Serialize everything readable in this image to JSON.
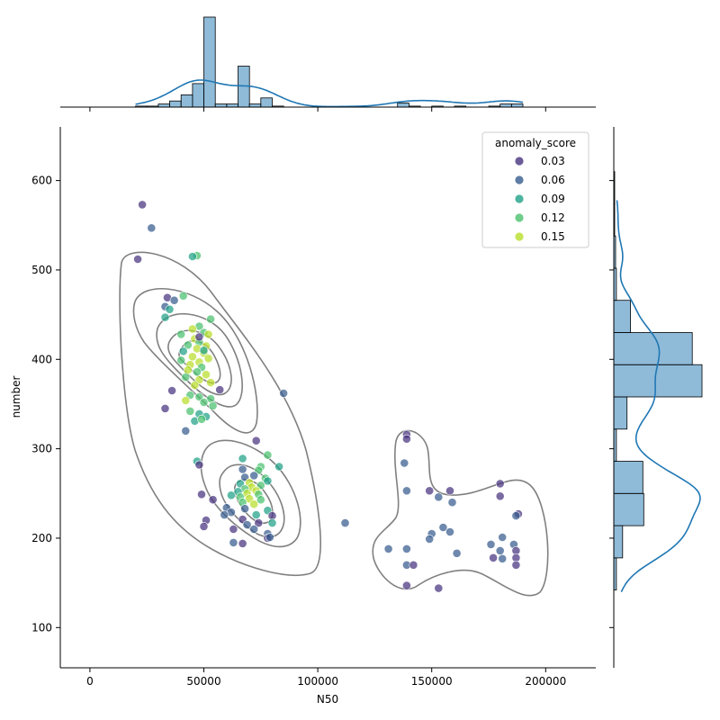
{
  "chart_data": {
    "type": "scatter",
    "subtype": "jointplot",
    "xlabel": "N50",
    "ylabel": "number",
    "xlim": [
      -13000,
      222000
    ],
    "ylim": [
      55,
      660
    ],
    "x_ticks": [
      0,
      50000,
      100000,
      150000,
      200000
    ],
    "y_ticks": [
      100,
      200,
      300,
      400,
      500,
      600
    ],
    "grid": false,
    "legend": {
      "title": "anomaly_score",
      "placement": "top-right",
      "entries": [
        {
          "label": "0.03",
          "color": "#46337e"
        },
        {
          "label": "0.06",
          "color": "#365c8d"
        },
        {
          "label": "0.09",
          "color": "#1fa187"
        },
        {
          "label": "0.12",
          "color": "#4ac16d"
        },
        {
          "label": "0.15",
          "color": "#b8de29"
        }
      ]
    },
    "points": [
      [
        23000,
        573,
        0.03
      ],
      [
        27000,
        547,
        0.06
      ],
      [
        21000,
        512,
        0.03
      ],
      [
        47000,
        516,
        0.12
      ],
      [
        45000,
        515,
        0.09
      ],
      [
        34000,
        469,
        0.03
      ],
      [
        37000,
        466,
        0.06
      ],
      [
        41000,
        471,
        0.12
      ],
      [
        33000,
        459,
        0.06
      ],
      [
        35000,
        456,
        0.09
      ],
      [
        33000,
        447,
        0.09
      ],
      [
        53000,
        445,
        0.12
      ],
      [
        48000,
        437,
        0.12
      ],
      [
        45000,
        434,
        0.15
      ],
      [
        50000,
        430,
        0.12
      ],
      [
        40000,
        428,
        0.12
      ],
      [
        52000,
        428,
        0.15
      ],
      [
        46000,
        423,
        0.15
      ],
      [
        48000,
        419,
        0.12
      ],
      [
        43000,
        416,
        0.12
      ],
      [
        51000,
        415,
        0.15
      ],
      [
        47000,
        412,
        0.15
      ],
      [
        41000,
        409,
        0.09
      ],
      [
        50000,
        407,
        0.15
      ],
      [
        45000,
        403,
        0.15
      ],
      [
        52000,
        401,
        0.15
      ],
      [
        40000,
        399,
        0.12
      ],
      [
        48000,
        397,
        0.15
      ],
      [
        44000,
        394,
        0.15
      ],
      [
        49000,
        391,
        0.12
      ],
      [
        43000,
        388,
        0.15
      ],
      [
        47000,
        386,
        0.12
      ],
      [
        51000,
        383,
        0.15
      ],
      [
        42000,
        380,
        0.12
      ],
      [
        48000,
        377,
        0.15
      ],
      [
        53000,
        374,
        0.15
      ],
      [
        46000,
        371,
        0.15
      ],
      [
        57000,
        366,
        0.03
      ],
      [
        36000,
        365,
        0.03
      ],
      [
        44000,
        360,
        0.12
      ],
      [
        48000,
        358,
        0.12
      ],
      [
        53000,
        356,
        0.12
      ],
      [
        42000,
        354,
        0.15
      ],
      [
        50000,
        352,
        0.12
      ],
      [
        54000,
        348,
        0.12
      ],
      [
        33000,
        345,
        0.03
      ],
      [
        44000,
        342,
        0.12
      ],
      [
        48000,
        339,
        0.09
      ],
      [
        51000,
        336,
        0.09
      ],
      [
        46000,
        331,
        0.09
      ],
      [
        49000,
        333,
        0.12
      ],
      [
        42000,
        320,
        0.06
      ],
      [
        85000,
        362,
        0.06
      ],
      [
        48000,
        425,
        0.03
      ],
      [
        50000,
        410,
        0.09
      ],
      [
        73000,
        309,
        0.03
      ],
      [
        78000,
        293,
        0.12
      ],
      [
        75000,
        280,
        0.12
      ],
      [
        83000,
        280,
        0.09
      ],
      [
        67000,
        289,
        0.09
      ],
      [
        47000,
        286,
        0.09
      ],
      [
        48000,
        282,
        0.03
      ],
      [
        67000,
        277,
        0.06
      ],
      [
        74000,
        276,
        0.12
      ],
      [
        72000,
        270,
        0.06
      ],
      [
        68000,
        268,
        0.06
      ],
      [
        77000,
        267,
        0.12
      ],
      [
        78000,
        264,
        0.09
      ],
      [
        70000,
        262,
        0.15
      ],
      [
        66000,
        261,
        0.09
      ],
      [
        75000,
        259,
        0.12
      ],
      [
        71000,
        257,
        0.15
      ],
      [
        68000,
        255,
        0.12
      ],
      [
        73000,
        253,
        0.15
      ],
      [
        65000,
        252,
        0.09
      ],
      [
        69000,
        250,
        0.15
      ],
      [
        74000,
        249,
        0.12
      ],
      [
        62000,
        248,
        0.09
      ],
      [
        66000,
        246,
        0.12
      ],
      [
        70000,
        244,
        0.15
      ],
      [
        75000,
        243,
        0.12
      ],
      [
        54000,
        243,
        0.03
      ],
      [
        67000,
        240,
        0.12
      ],
      [
        72000,
        238,
        0.15
      ],
      [
        78000,
        231,
        0.09
      ],
      [
        60000,
        234,
        0.06
      ],
      [
        62000,
        229,
        0.06
      ],
      [
        59000,
        226,
        0.06
      ],
      [
        68000,
        233,
        0.06
      ],
      [
        73000,
        226,
        0.09
      ],
      [
        80000,
        225,
        0.03
      ],
      [
        51000,
        220,
        0.03
      ],
      [
        50000,
        213,
        0.03
      ],
      [
        67000,
        221,
        0.03
      ],
      [
        69000,
        215,
        0.06
      ],
      [
        74000,
        217,
        0.03
      ],
      [
        80000,
        217,
        0.09
      ],
      [
        63000,
        210,
        0.03
      ],
      [
        72000,
        210,
        0.06
      ],
      [
        78000,
        205,
        0.06
      ],
      [
        78000,
        200,
        0.03
      ],
      [
        63000,
        195,
        0.06
      ],
      [
        67000,
        194,
        0.03
      ],
      [
        49000,
        249,
        0.03
      ],
      [
        79000,
        201,
        0.06
      ],
      [
        112000,
        217,
        0.06
      ],
      [
        139000,
        316,
        0.03
      ],
      [
        139000,
        311,
        0.03
      ],
      [
        138000,
        284,
        0.06
      ],
      [
        139000,
        253,
        0.06
      ],
      [
        149000,
        253,
        0.03
      ],
      [
        158000,
        253,
        0.03
      ],
      [
        153000,
        246,
        0.06
      ],
      [
        159000,
        240,
        0.06
      ],
      [
        180000,
        261,
        0.03
      ],
      [
        180000,
        247,
        0.03
      ],
      [
        188000,
        227,
        0.03
      ],
      [
        187000,
        225,
        0.06
      ],
      [
        150000,
        205,
        0.06
      ],
      [
        155000,
        212,
        0.06
      ],
      [
        158000,
        207,
        0.06
      ],
      [
        149000,
        199,
        0.06
      ],
      [
        131000,
        188,
        0.06
      ],
      [
        139000,
        188,
        0.06
      ],
      [
        161000,
        183,
        0.06
      ],
      [
        176000,
        193,
        0.06
      ],
      [
        180000,
        186,
        0.06
      ],
      [
        181000,
        201,
        0.06
      ],
      [
        186000,
        193,
        0.06
      ],
      [
        187000,
        186,
        0.03
      ],
      [
        177000,
        178,
        0.03
      ],
      [
        181000,
        177,
        0.06
      ],
      [
        187000,
        178,
        0.03
      ],
      [
        187000,
        170,
        0.03
      ],
      [
        139000,
        170,
        0.06
      ],
      [
        142000,
        170,
        0.03
      ],
      [
        139000,
        147,
        0.03
      ],
      [
        153000,
        144,
        0.03
      ]
    ],
    "x_marginal_hist": {
      "bin_width": 5000,
      "bins": [
        [
          20000,
          1
        ],
        [
          25000,
          1
        ],
        [
          30000,
          3
        ],
        [
          35000,
          6
        ],
        [
          40000,
          12
        ],
        [
          45000,
          23
        ],
        [
          50000,
          88
        ],
        [
          55000,
          3
        ],
        [
          60000,
          3
        ],
        [
          65000,
          40
        ],
        [
          70000,
          3
        ],
        [
          75000,
          9
        ],
        [
          80000,
          1
        ],
        [
          135000,
          4
        ],
        [
          140000,
          1
        ],
        [
          150000,
          1
        ],
        [
          160000,
          1
        ],
        [
          175000,
          1
        ],
        [
          180000,
          3
        ],
        [
          185000,
          3
        ]
      ]
    },
    "y_marginal_hist": {
      "bin_width": 36,
      "bins": [
        [
          142,
          3
        ],
        [
          178,
          10
        ],
        [
          214,
          34
        ],
        [
          250,
          33
        ],
        [
          286,
          3
        ],
        [
          322,
          15
        ],
        [
          358,
          100
        ],
        [
          394,
          89
        ],
        [
          430,
          19
        ],
        [
          466,
          3
        ],
        [
          502,
          2
        ],
        [
          538,
          1
        ],
        [
          574,
          1
        ]
      ]
    }
  }
}
